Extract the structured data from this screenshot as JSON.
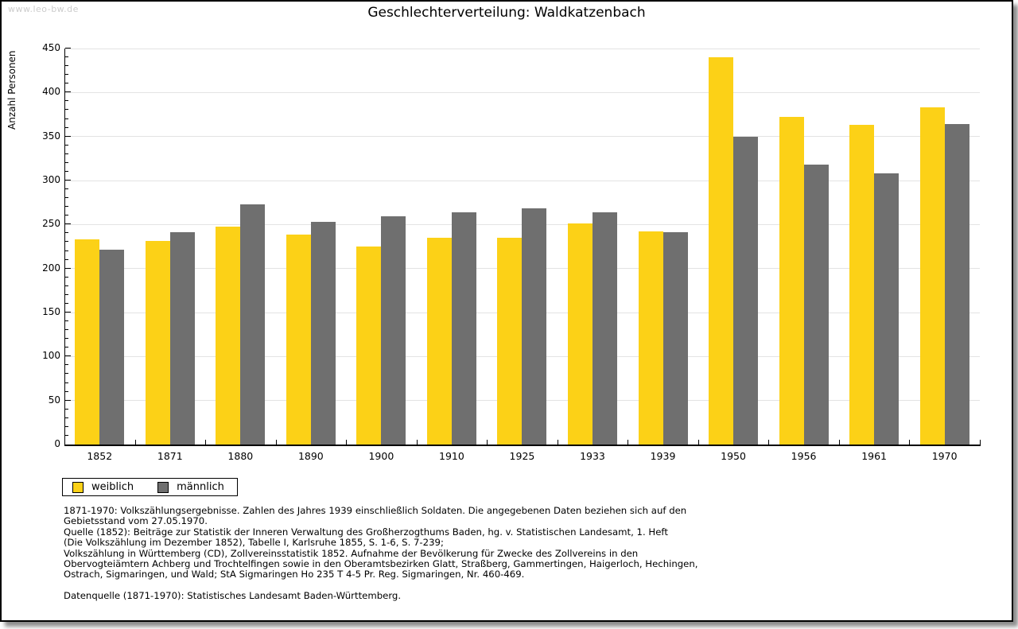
{
  "watermark": "www.leo-bw.de",
  "title": "Geschlechterverteilung: Waldkatzenbach",
  "chart_data": {
    "type": "bar",
    "title": "Geschlechterverteilung: Waldkatzenbach",
    "xlabel": "",
    "ylabel": "Anzahl Personen",
    "ylim": [
      0,
      450
    ],
    "ytick_major_step": 50,
    "ytick_minor_step": 10,
    "grid": true,
    "legend_position": "bottom-left",
    "categories": [
      "1852",
      "1871",
      "1880",
      "1890",
      "1900",
      "1910",
      "1925",
      "1933",
      "1939",
      "1950",
      "1956",
      "1961",
      "1970"
    ],
    "series": [
      {
        "name": "weiblich",
        "color": "#fcd117",
        "values": [
          233,
          231,
          248,
          239,
          225,
          235,
          235,
          251,
          242,
          440,
          372,
          363,
          383
        ]
      },
      {
        "name": "männlich",
        "color": "#6f6f6f",
        "values": [
          221,
          241,
          273,
          253,
          259,
          264,
          268,
          264,
          241,
          350,
          318,
          308,
          364
        ]
      }
    ]
  },
  "footnotes": {
    "lines": [
      "1871-1970: Volkszählungsergebnisse. Zahlen des Jahres 1939 einschließlich Soldaten. Die angegebenen Daten beziehen sich auf den",
      "Gebietsstand vom 27.05.1970.",
      "Quelle (1852): Beiträge zur Statistik der Inneren Verwaltung des Großherzogthums Baden, hg. v. Statistischen Landesamt, 1. Heft",
      "(Die Volkszählung im Dezember 1852), Tabelle I, Karlsruhe 1855, S. 1-6, S. 7-239;",
      "Volkszählung in Württemberg (CD), Zollvereinsstatistik 1852. Aufnahme der Bevölkerung für Zwecke des Zollvereins in den",
      "Obervogteiämtern Achberg und Trochtelfingen sowie in den Oberamtsbezirken Glatt, Straßberg, Gammertingen, Haigerloch, Hechingen,",
      "Ostrach, Sigmaringen, und Wald; StA Sigmaringen Ho 235 T 4-5 Pr. Reg. Sigmaringen, Nr. 460-469."
    ],
    "datasource": "Datenquelle (1871-1970): Statistisches Landesamt Baden-Württemberg."
  },
  "colors": {
    "female_bar": "#fcd117",
    "male_bar": "#6f6f6f",
    "gridline": "#e3e3e3",
    "axis": "#000000",
    "watermark_text": "#cccccc",
    "page_border": "#000000"
  }
}
